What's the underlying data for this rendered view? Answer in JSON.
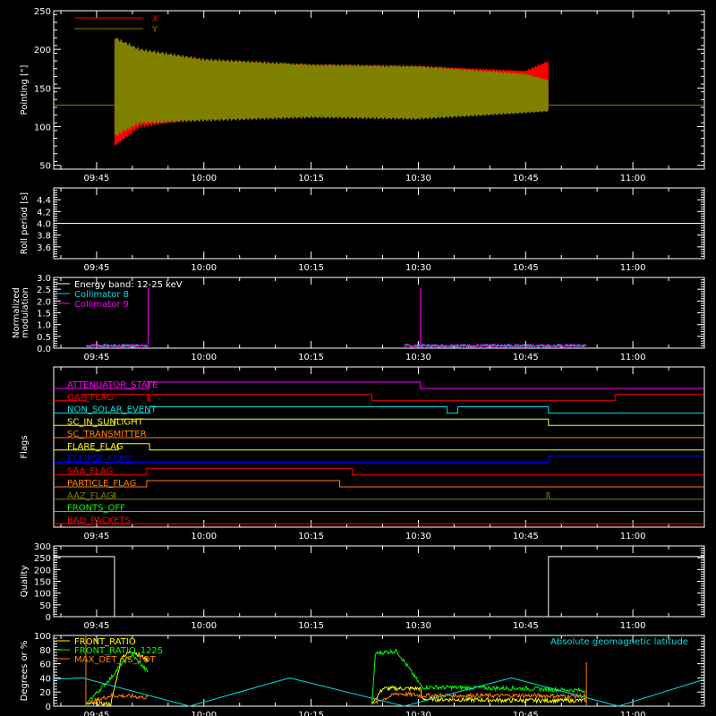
{
  "colors": {
    "background": "#000000",
    "axes": "#ffffff",
    "x_series": "#ff0000",
    "y_series": "#808000",
    "collimator_8": "#00e0e0",
    "collimator_9": "#ff00ff",
    "front_ratio": "#ffff00",
    "front_ratio_1225": "#00ff00",
    "max_det": "#ff8000",
    "latitude": "#00e0e0"
  },
  "time_axis": {
    "tick_labels": [
      "09:45",
      "10:00",
      "10:15",
      "10:30",
      "10:45",
      "11:00"
    ],
    "ticks_minutes": [
      585,
      600,
      615,
      630,
      645,
      660
    ],
    "range_minutes": [
      579,
      670
    ]
  },
  "chart_data": [
    {
      "id": "pointing",
      "type": "area",
      "ylabel": "Pointing [\"]",
      "ylim": [
        45,
        250
      ],
      "ytick_labels": [
        "50",
        "100",
        "150",
        "200",
        "250"
      ],
      "baseline": 128,
      "active_range": [
        587.5,
        648.2
      ],
      "series": [
        {
          "name": "X",
          "color": "#ff0000",
          "envelope": [
            {
              "t": 587.5,
              "lo": 75,
              "hi": 215
            },
            {
              "t": 591,
              "lo": 100,
              "hi": 195
            },
            {
              "t": 600,
              "lo": 112,
              "hi": 185
            },
            {
              "t": 615,
              "lo": 120,
              "hi": 180
            },
            {
              "t": 630,
              "lo": 118,
              "hi": 178
            },
            {
              "t": 645,
              "lo": 123,
              "hi": 172
            },
            {
              "t": 648.2,
              "lo": 125,
              "hi": 185
            }
          ]
        },
        {
          "name": "Y",
          "color": "#808000",
          "envelope": [
            {
              "t": 587.5,
              "lo": 88,
              "hi": 215
            },
            {
              "t": 591,
              "lo": 105,
              "hi": 200
            },
            {
              "t": 600,
              "lo": 108,
              "hi": 187
            },
            {
              "t": 615,
              "lo": 112,
              "hi": 180
            },
            {
              "t": 630,
              "lo": 110,
              "hi": 178
            },
            {
              "t": 645,
              "lo": 118,
              "hi": 168
            },
            {
              "t": 648.2,
              "lo": 120,
              "hi": 160
            }
          ]
        }
      ]
    },
    {
      "id": "roll",
      "type": "line",
      "ylabel": "Roll period [s]",
      "ylim": [
        3.4,
        4.6
      ],
      "ytick_labels": [
        "3.6",
        "3.8",
        "4.0",
        "4.2",
        "4.4"
      ],
      "value": 4.0
    },
    {
      "id": "modulation",
      "type": "line",
      "ylabel": "Normalized\nmodulation",
      "ylim": [
        0,
        3.0
      ],
      "ytick_labels": [
        "0.0",
        "0.5",
        "1.0",
        "1.5",
        "2.0",
        "2.5",
        "3.0"
      ],
      "legend": [
        "Energy band: 12-25 keV",
        "Collimator 8",
        "Collimator 9"
      ],
      "active_ranges": [
        [
          583.5,
          592.2
        ],
        [
          628.0,
          653.5
        ]
      ],
      "level": 0.08,
      "spikes": [
        {
          "t": 592.2,
          "v": 2.55
        },
        {
          "t": 630.3,
          "v": 2.55
        }
      ]
    },
    {
      "id": "flags",
      "type": "line",
      "ylabel": "Flags",
      "flags": [
        {
          "name": "ATTENUATOR_STATE",
          "color": "#ff00ff",
          "transitions": [
            {
              "t": 592.2,
              "v": 1
            },
            {
              "t": 630.3,
              "v": 0
            }
          ]
        },
        {
          "name": "GAP_FLAG",
          "color": "#ff0000",
          "transitions": [
            {
              "t": 583.5,
              "v": 1
            },
            {
              "t": 592.2,
              "v": 0
            },
            {
              "t": 592.4,
              "v": 1
            },
            {
              "t": 623.5,
              "v": 0
            },
            {
              "t": 657.5,
              "v": 1
            }
          ]
        },
        {
          "name": "NON_SOLAR_EVENT",
          "color": "#00e0e0",
          "transitions": [
            {
              "t": 592.4,
              "v": 1
            },
            {
              "t": 634.0,
              "v": 0
            },
            {
              "t": 635.5,
              "v": 1
            },
            {
              "t": 648.2,
              "v": 0
            }
          ]
        },
        {
          "name": "SC_IN_SUNLIGHT",
          "color": "#ffff00",
          "transitions": [
            {
              "t": 587.5,
              "v": 1
            },
            {
              "t": 648.2,
              "v": 0
            }
          ]
        },
        {
          "name": "SC_TRANSMITTER",
          "color": "#ff8000",
          "transitions": []
        },
        {
          "name": "FLARE_FLAG",
          "color": "#ffff00",
          "transitions": [
            {
              "t": 588.0,
              "v": 1
            },
            {
              "t": 592.4,
              "v": 0
            }
          ]
        },
        {
          "name": "ECLIPSE_FLAG",
          "color": "#0000ff",
          "transitions": [
            {
              "t": 587.5,
              "v": 0
            },
            {
              "t": 648.2,
              "v": 1
            }
          ]
        },
        {
          "name": "SAA_FLAG",
          "color": "#ff0000",
          "transitions": [
            {
              "t": 592.0,
              "v": 1
            },
            {
              "t": 620.8,
              "v": 0
            }
          ]
        },
        {
          "name": "PARTICLE_FLAG",
          "color": "#ff8000",
          "transitions": [
            {
              "t": 592.0,
              "v": 1
            },
            {
              "t": 619.0,
              "v": 0
            }
          ]
        },
        {
          "name": "AAZ_FLAG",
          "color": "#808000",
          "transitions": [
            {
              "t": 587.4,
              "v": 1
            },
            {
              "t": 587.6,
              "v": 0
            },
            {
              "t": 648.0,
              "v": 1
            },
            {
              "t": 648.3,
              "v": 0
            }
          ]
        },
        {
          "name": "FRONTS_OFF",
          "color": "#00ff00",
          "transitions": []
        },
        {
          "name": "BAD_PACKETS",
          "color": "#ff0000",
          "transitions": []
        }
      ]
    },
    {
      "id": "quality",
      "type": "line",
      "ylabel": "Quality",
      "ylim": [
        0,
        300
      ],
      "ytick_labels": [
        "0",
        "50",
        "100",
        "150",
        "200",
        "250",
        "300"
      ],
      "points": [
        {
          "t": 579,
          "v": 255
        },
        {
          "t": 587.5,
          "v": 255
        },
        {
          "t": 587.5,
          "v": 0
        },
        {
          "t": 648.2,
          "v": 0
        },
        {
          "t": 648.2,
          "v": 255
        },
        {
          "t": 670,
          "v": 255
        }
      ]
    },
    {
      "id": "ratios",
      "type": "line",
      "ylabel": "Degrees or %",
      "ylim": [
        0,
        100
      ],
      "ytick_labels": [
        "0",
        "20",
        "40",
        "60",
        "80",
        "100"
      ],
      "annotation": "Absolute geomagnetic latitude",
      "legend": [
        "FRONT_RATIO",
        "FRONT_RATIO_1225",
        "MAX_DET_VS_TOT"
      ],
      "series": [
        {
          "name": "FRONT_RATIO",
          "color": "#ffff00",
          "segments": [
            {
              "t": [
                583.5,
                587,
                588.5,
                590,
                592.2
              ],
              "v": [
                3,
                3,
                70,
                78,
                65
              ]
            },
            {
              "t": [
                623.5,
                625,
                629,
                630.3,
                630.5,
                645,
                653.5
              ],
              "v": [
                3,
                25,
                25,
                25,
                10,
                8,
                8
              ]
            }
          ]
        },
        {
          "name": "FRONT_RATIO_1225",
          "color": "#00ff00",
          "segments": [
            {
              "t": [
                583.5,
                587,
                588.5,
                590,
                592.2
              ],
              "v": [
                3,
                40,
                60,
                72,
                48
              ]
            },
            {
              "t": [
                623.5,
                624,
                627,
                630.5,
                645,
                653.5
              ],
              "v": [
                3,
                75,
                78,
                27,
                25,
                22
              ]
            }
          ]
        },
        {
          "name": "MAX_DET_VS_TOT",
          "color": "#ff8000",
          "segments": [
            {
              "t": [
                583.5,
                587,
                590,
                592.2
              ],
              "v": [
                3,
                15,
                14,
                12
              ]
            },
            {
              "t": [
                623.5,
                627,
                630.5,
                645,
                653.5
              ],
              "v": [
                3,
                18,
                15,
                15,
                14
              ]
            }
          ]
        },
        {
          "name": "Absolute geomagnetic latitude",
          "color": "#00e0e0",
          "points": [
            {
              "t": 579,
              "v": 38
            },
            {
              "t": 583,
              "v": 40
            },
            {
              "t": 598,
              "v": 0
            },
            {
              "t": 612,
              "v": 40
            },
            {
              "t": 628,
              "v": 0
            },
            {
              "t": 643,
              "v": 40
            },
            {
              "t": 658,
              "v": 0
            },
            {
              "t": 670,
              "v": 38
            }
          ]
        }
      ],
      "spikes": [
        {
          "t": 583.5,
          "v": 100
        },
        {
          "t": 653.5,
          "v": 62
        }
      ]
    }
  ]
}
